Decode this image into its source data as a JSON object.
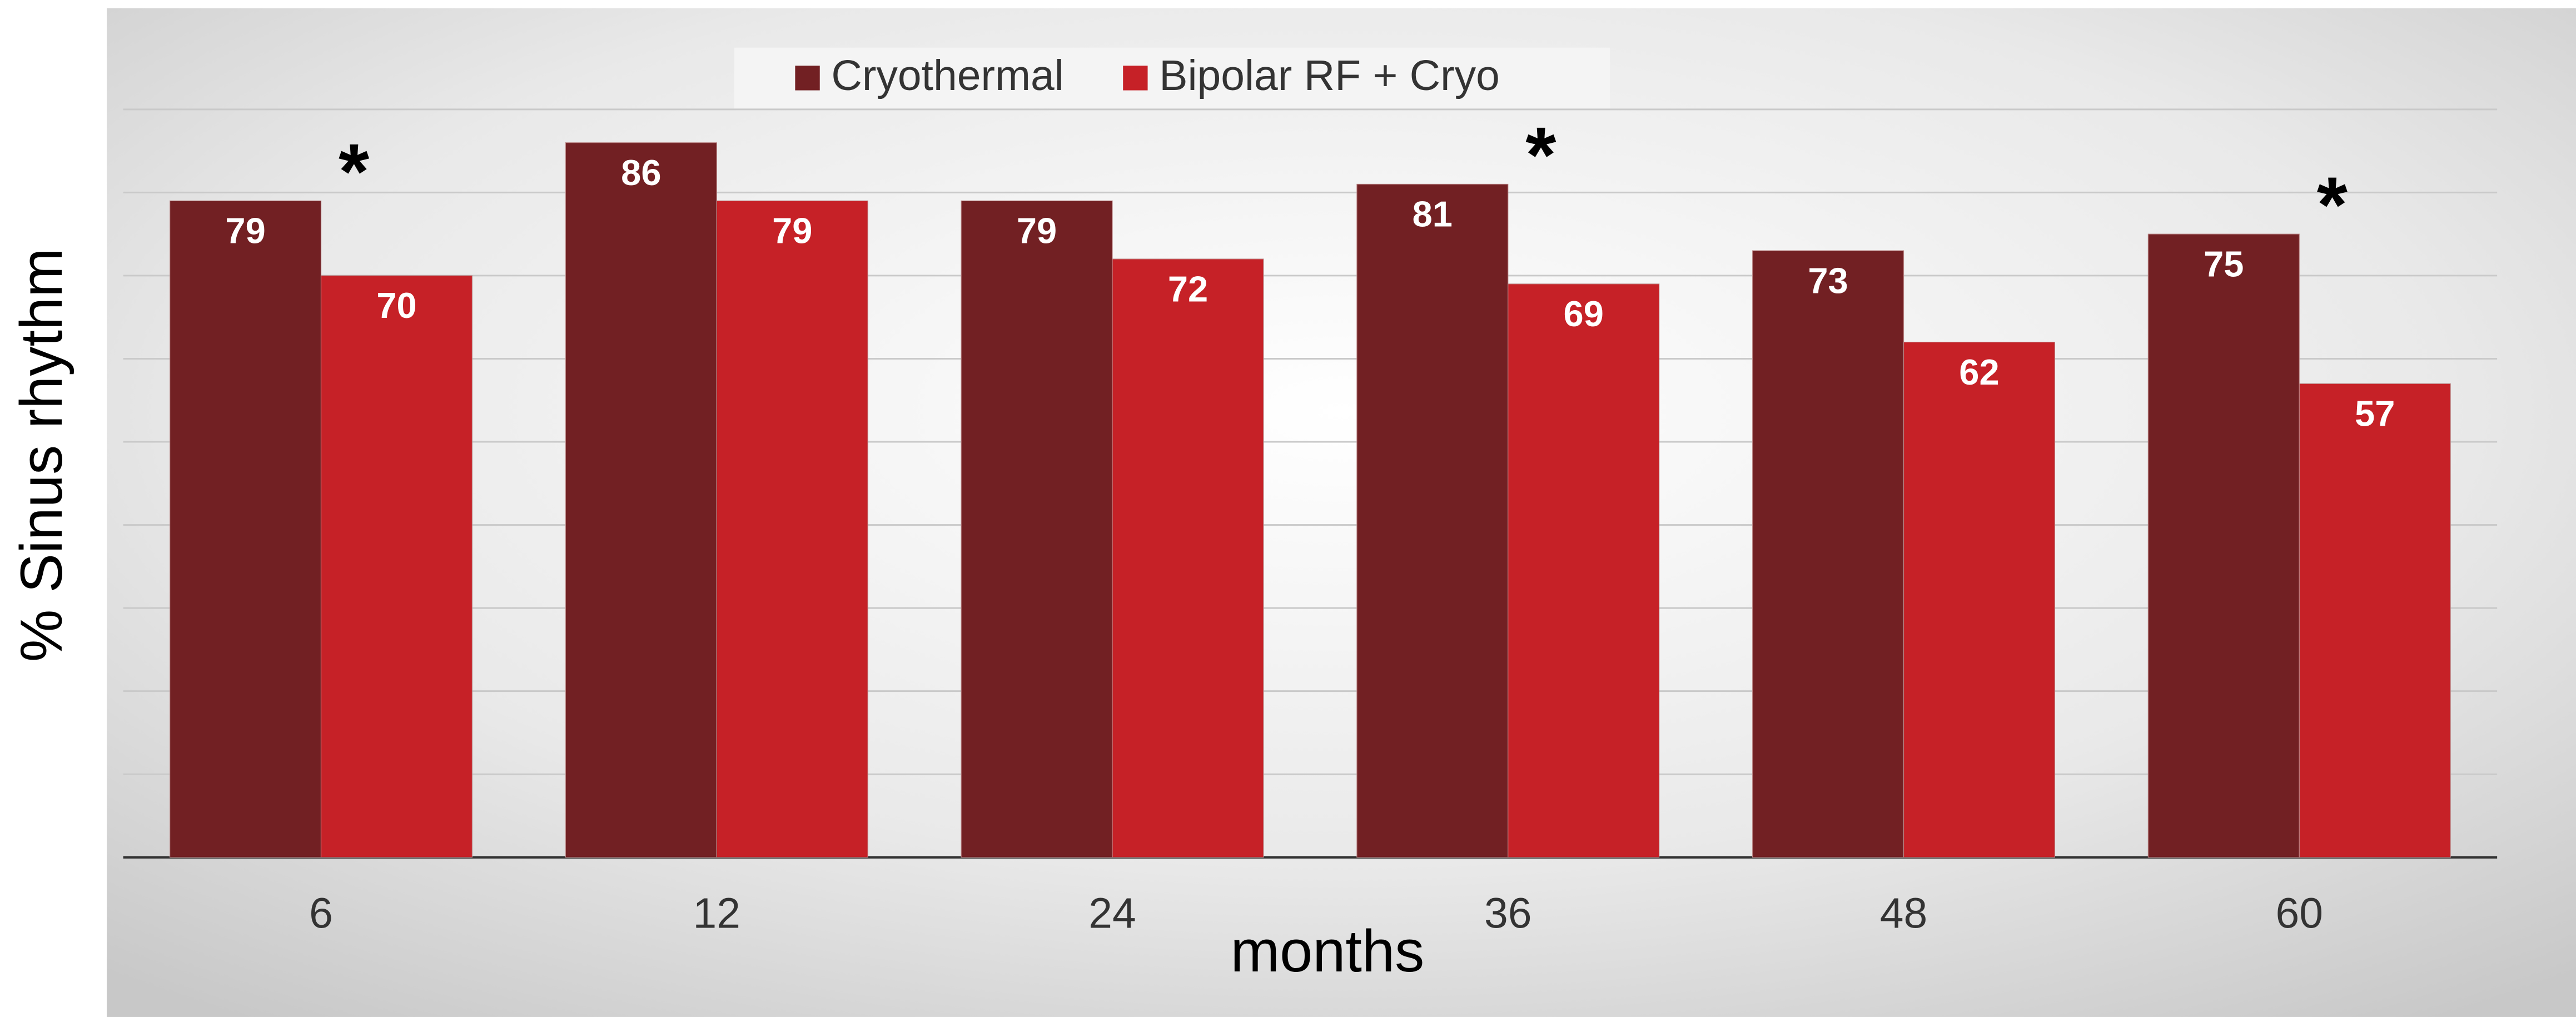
{
  "chart_data": {
    "type": "bar",
    "x_label": "months",
    "y_label": "% Sinus rhythm",
    "categories": [
      "6",
      "12",
      "24",
      "36",
      "48",
      "60"
    ],
    "series": [
      {
        "name": "Cryothermal",
        "color": "#722023",
        "values": [
          79,
          86,
          79,
          81,
          73,
          75
        ]
      },
      {
        "name": "Bipolar RF + Cryo",
        "color": "#c62127",
        "values": [
          70,
          79,
          72,
          69,
          62,
          57
        ]
      }
    ],
    "annotations": [
      {
        "label": "*",
        "x": "6"
      },
      {
        "label": "*",
        "x": "36"
      },
      {
        "label": "*",
        "x": "60"
      }
    ],
    "ylim": [
      0,
      102
    ],
    "yticks": [
      0,
      10,
      20,
      30,
      40,
      50,
      60,
      70,
      80,
      90
    ],
    "grid": true,
    "legend": "top"
  }
}
